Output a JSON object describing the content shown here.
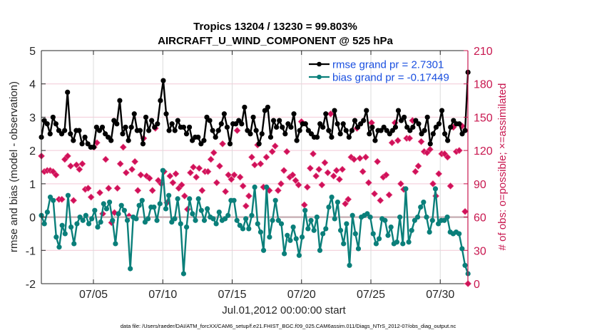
{
  "chart_data": {
    "type": "line",
    "title": "Tropics 13204 / 13230 = 99.803%",
    "subtitle": "AIRCRAFT_U_WIND_COMPONENT @ 525 hPa",
    "xlabel": "Jul.01,2012 00:00:00 start",
    "ylabel": "rmse and bias (model - observation)",
    "ylabel_right": "# of obs: o=possible; ×=assimilated",
    "footer": "data file: /Users/raeder/DAI/ATM_forcXX/CAM6_setup/f.e21.FHIST_BGC.f09_025.CAM6assim.011/Diags_NTrS_2012-07/obs_diag_output.nc",
    "x_start_day": 1.25,
    "x_step_days": 0.25,
    "xlim_days": [
      1.25,
      32.0
    ],
    "x_ticks": [
      {
        "day": 5,
        "label": "07/05"
      },
      {
        "day": 10,
        "label": "07/10"
      },
      {
        "day": 15,
        "label": "07/15"
      },
      {
        "day": 20,
        "label": "07/20"
      },
      {
        "day": 25,
        "label": "07/25"
      },
      {
        "day": 30,
        "label": "07/30"
      }
    ],
    "ylim": [
      -2,
      5
    ],
    "y_ticks": [
      -2,
      -1,
      0,
      1,
      2,
      3,
      4,
      5
    ],
    "ylim_right": [
      0,
      210
    ],
    "y_ticks_right": [
      0,
      30,
      60,
      90,
      120,
      150,
      180,
      210
    ],
    "grid": true,
    "legend_position": "top-right",
    "series": [
      {
        "name": "rmse grand pr = 2.7301",
        "color": "#000000",
        "axis": "left",
        "values": [
          2.4,
          2.9,
          2.8,
          2.5,
          3.0,
          2.8,
          2.6,
          2.5,
          2.6,
          3.75,
          2.5,
          2.3,
          2.6,
          2.6,
          2.2,
          2.4,
          2.2,
          2.1,
          2.1,
          2.7,
          2.6,
          2.7,
          2.5,
          2.4,
          2.3,
          2.9,
          2.8,
          3.5,
          2.5,
          2.7,
          2.3,
          2.7,
          3.1,
          2.6,
          2.6,
          2.2,
          3.0,
          2.6,
          2.9,
          2.7,
          2.8,
          3.5,
          4.1,
          3.1,
          2.6,
          2.8,
          2.6,
          2.9,
          2.7,
          2.7,
          2.5,
          2.7,
          2.3,
          2.4,
          2.4,
          2.2,
          2.3,
          3.0,
          2.9,
          2.6,
          2.4,
          2.6,
          2.8,
          3.1,
          2.7,
          2.2,
          2.8,
          2.8,
          2.9,
          2.8,
          3.3,
          2.6,
          2.5,
          3.0,
          2.6,
          2.2,
          2.5,
          3.2,
          3.3,
          2.4,
          2.9,
          2.7,
          2.9,
          2.7,
          2.5,
          2.8,
          2.7,
          3.1,
          2.3,
          2.6,
          2.8,
          2.8,
          2.6,
          2.5,
          2.4,
          2.4,
          2.8,
          2.7,
          3.1,
          2.6,
          2.4,
          3.2,
          2.8,
          2.5,
          2.8,
          2.6,
          2.4,
          2.6,
          2.9,
          2.7,
          2.8,
          2.9,
          3.2,
          2.5,
          2.7,
          2.3,
          2.6,
          2.6,
          2.7,
          2.6,
          2.5,
          2.6,
          2.7,
          3.2,
          2.9,
          3.0,
          2.7,
          2.6,
          2.7,
          2.9,
          2.8,
          2.5,
          2.6,
          3.0,
          2.2,
          2.5,
          2.7,
          2.8,
          3.2,
          2.5,
          2.3,
          2.7,
          2.9,
          2.8,
          2.8,
          2.5,
          2.6,
          4.35
        ]
      },
      {
        "name": "bias grand pr = -0.17449",
        "color": "#0a7f7a",
        "axis": "left",
        "values": [
          0.05,
          -0.2,
          0.15,
          0.6,
          0.5,
          -0.6,
          -0.9,
          -0.25,
          -0.5,
          0.65,
          -0.3,
          -0.8,
          -0.2,
          0.0,
          -0.1,
          0.05,
          -0.2,
          -0.05,
          0.2,
          -0.3,
          -0.15,
          0.4,
          0.25,
          0.45,
          -0.1,
          -0.8,
          0.1,
          0.35,
          0.2,
          -0.1,
          -1.55,
          0.0,
          -0.05,
          0.35,
          0.5,
          -0.15,
          -0.05,
          0.3,
          0.3,
          -0.1,
          0.4,
          1.4,
          0.25,
          0.65,
          -0.15,
          -0.05,
          0.55,
          -0.2,
          -1.7,
          -0.3,
          0.55,
          0.1,
          -0.1,
          0.55,
          0.2,
          -0.1,
          0.25,
          0.0,
          -0.05,
          -0.2,
          0.15,
          -0.1,
          -0.05,
          0.05,
          0.5,
          0.5,
          -0.1,
          -0.25,
          -0.35,
          -0.05,
          -0.35,
          0.05,
          0.9,
          -0.2,
          -0.45,
          -1.0,
          0.9,
          -0.6,
          -0.1,
          0.5,
          -0.1,
          -0.2,
          -1.1,
          -0.55,
          -0.7,
          -0.3,
          -0.65,
          -1.15,
          -0.6,
          0.2,
          -0.35,
          -0.1,
          -0.4,
          0.0,
          -1.0,
          -0.5,
          -0.35,
          0.3,
          0.6,
          -0.05,
          0.45,
          -0.4,
          -0.8,
          -0.2,
          -1.45,
          0.05,
          -0.5,
          -0.95,
          0.0,
          0.05,
          0.1,
          0.0,
          -0.5,
          -0.8,
          -0.65,
          -0.05,
          -0.1,
          -0.55,
          -0.3,
          -0.8,
          -0.75,
          0.0,
          -0.8,
          0.85,
          -0.75,
          -0.4,
          -0.1,
          0.0,
          0.3,
          0.45,
          0.0,
          -0.45,
          -0.1,
          0.85,
          -0.2,
          -0.1,
          -0.1,
          0.0,
          -0.45,
          -0.5,
          -0.45,
          -0.5,
          -0.95,
          -1.45,
          -1.7
        ]
      }
    ],
    "obs_series": {
      "name": "# of obs assimilated",
      "color": "#d0105a",
      "axis": "right",
      "values": [
        115,
        101,
        102,
        102,
        101,
        98,
        76,
        76,
        112,
        115,
        106,
        75,
        107,
        103,
        108,
        85,
        86,
        78,
        123,
        127,
        82,
        63,
        112,
        86,
        55,
        64,
        86,
        108,
        123,
        100,
        61,
        103,
        110,
        84,
        98,
        131,
        97,
        95,
        84,
        140,
        93,
        90,
        101,
        73,
        97,
        91,
        99,
        86,
        89,
        79,
        67,
        100,
        105,
        96,
        104,
        84,
        101,
        101,
        112,
        118,
        91,
        106,
        126,
        83,
        98,
        94,
        98,
        138,
        96,
        88,
        70,
        79,
        114,
        107,
        125,
        108,
        87,
        114,
        84,
        119,
        124,
        84,
        90,
        102,
        119,
        96,
        98,
        93,
        89,
        146,
        71,
        87,
        104,
        117,
        97,
        103,
        89,
        109,
        100,
        153,
        97,
        102,
        94,
        103,
        72,
        76,
        114,
        112,
        140,
        113,
        101,
        114,
        91,
        145,
        81,
        110,
        75,
        96,
        98,
        80,
        127,
        145,
        129,
        90,
        85,
        131,
        131,
        147,
        101,
        106,
        128,
        119,
        118,
        121,
        90,
        79,
        99,
        117,
        117,
        114,
        88,
        141,
        119,
        120,
        142,
        65,
        0
      ]
    }
  }
}
